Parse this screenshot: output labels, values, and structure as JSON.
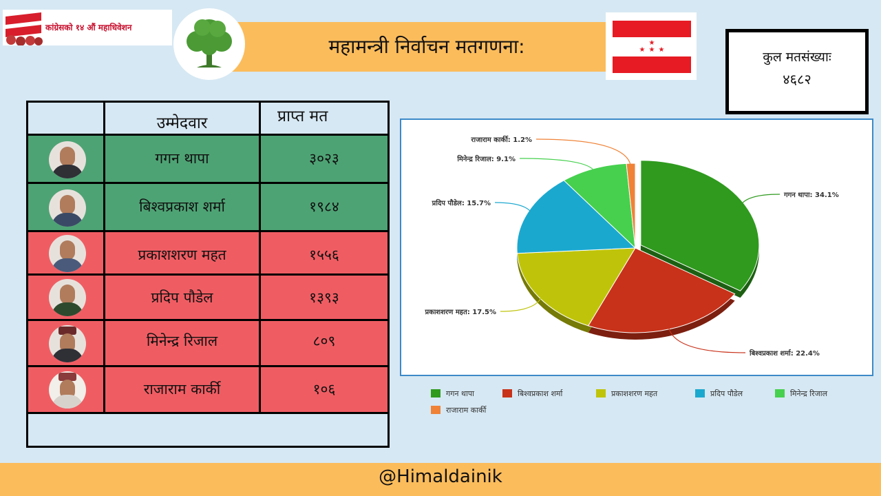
{
  "header": {
    "event_label": "कांग्रेसको १४ औं महाधिवेशन",
    "title": "महामन्त्री निर्वाचन मतगणना:"
  },
  "total": {
    "label": "कुल मतसंख्याः",
    "value": "४६८२"
  },
  "table": {
    "headers": {
      "candidate": "उम्मेदवार",
      "votes": "प्राप्त मत"
    },
    "rows": [
      {
        "name": "गगन थापा",
        "votes": "३०२३",
        "status": "green"
      },
      {
        "name": "बिश्वप्रकाश शर्मा",
        "votes": "१९८४",
        "status": "green"
      },
      {
        "name": "प्रकाशशरण महत",
        "votes": "१५५६",
        "status": "red"
      },
      {
        "name": "प्रदिप पौडेल",
        "votes": "१३९३",
        "status": "red"
      },
      {
        "name": "मिनेन्द्र रिजाल",
        "votes": "८०९",
        "status": "red"
      },
      {
        "name": "राजाराम कार्की",
        "votes": "१०६",
        "status": "red"
      }
    ]
  },
  "chart_data": {
    "type": "pie",
    "title": "",
    "labels": [
      "गगन थापा",
      "बिश्वप्रकाश शर्मा",
      "प्रकाशशरण महत",
      "प्रदिप पौडेल",
      "मिनेन्द्र रिजाल",
      "राजाराम कार्की"
    ],
    "values": [
      34.1,
      22.4,
      17.5,
      15.7,
      9.1,
      1.2
    ],
    "data_labels": [
      "गगन थापा: 34.1%",
      "बिश्वप्रकाश शर्मा: 22.4%",
      "प्रकाशशरण महत: 17.5%",
      "प्रदिप पौडेल: 15.7%",
      "मिनेन्द्र रिजाल: 9.1%",
      "राजाराम कार्की: 1.2%"
    ],
    "colors": [
      "#2f9a1e",
      "#c8321a",
      "#bfc40a",
      "#1ba8cf",
      "#46d04e",
      "#ef8236"
    ],
    "legend_position": "bottom",
    "exploded_slice": "गगन थापा"
  },
  "colors": {
    "background": "#d6e8f3",
    "accent": "#fbbc5c",
    "row_green": "#4ea374",
    "row_red": "#ef5d63"
  },
  "footer": {
    "handle": "@Himaldainik"
  }
}
